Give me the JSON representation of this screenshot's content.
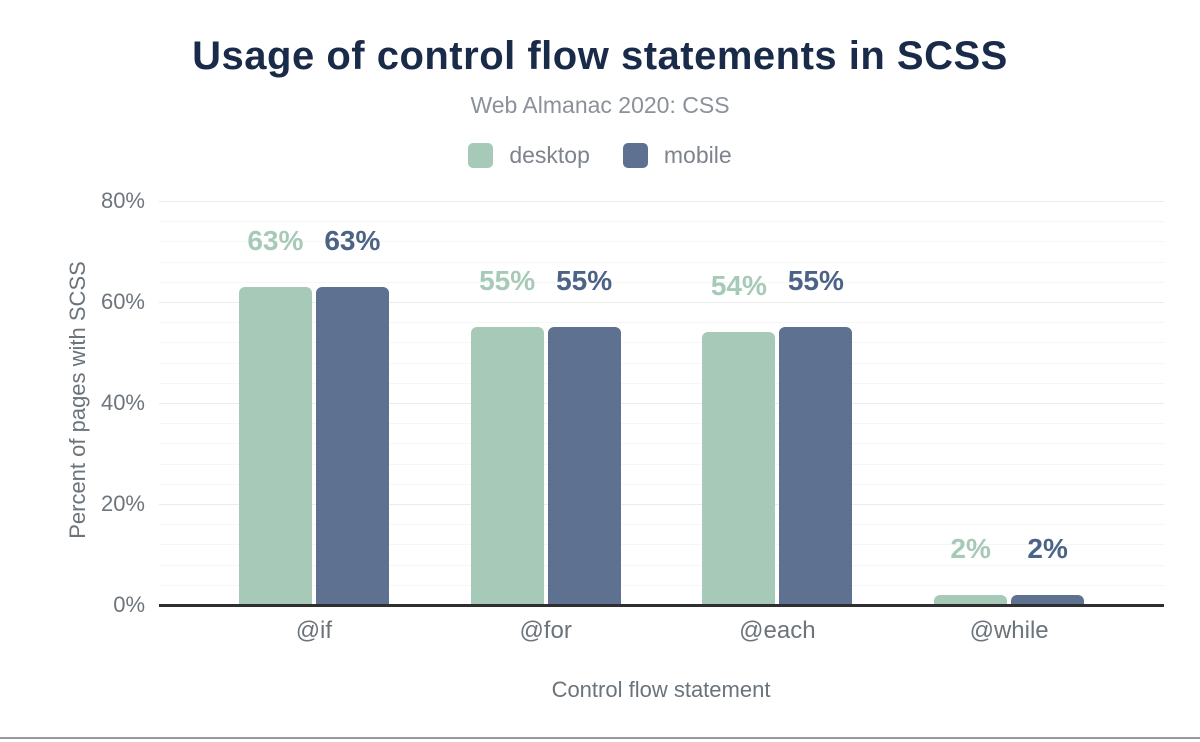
{
  "chart_data": {
    "type": "bar",
    "title": "Usage of control flow statements in SCSS",
    "subtitle": "Web Almanac 2020: CSS",
    "xlabel": "Control flow statement",
    "ylabel": "Percent of pages with SCSS",
    "categories": [
      "@if",
      "@for",
      "@each",
      "@while"
    ],
    "series": [
      {
        "name": "desktop",
        "color": "#a7cab8",
        "label_color": "#a7cab8",
        "values": [
          63,
          55,
          54,
          2
        ],
        "labels": [
          "63%",
          "55%",
          "54%",
          "2%"
        ]
      },
      {
        "name": "mobile",
        "color": "#5e7190",
        "label_color": "#4c6386",
        "values": [
          63,
          55,
          55,
          2
        ],
        "labels": [
          "63%",
          "55%",
          "55%",
          "2%"
        ]
      }
    ],
    "ylim": [
      0,
      80
    ],
    "y_major_step": 20,
    "y_minor_step": 4,
    "y_ticks": [
      {
        "value": 0,
        "label": "0%"
      },
      {
        "value": 20,
        "label": "20%"
      },
      {
        "value": 40,
        "label": "40%"
      },
      {
        "value": 60,
        "label": "60%"
      },
      {
        "value": 80,
        "label": "80%"
      }
    ],
    "legend_position": "top",
    "grid": true
  },
  "colors": {
    "title": "#1a2b4a",
    "subtitle": "#8b9199",
    "legend_text": "#7d848d",
    "axis_text": "#6b737b",
    "desktop": "#a7cab8",
    "mobile": "#5e7190",
    "mobile_label": "#4c6386",
    "axis_line": "#2f2f2f",
    "grid_major": "#ebebeb",
    "grid_minor": "#f6f6f6",
    "bottom_rule": "#999999"
  }
}
